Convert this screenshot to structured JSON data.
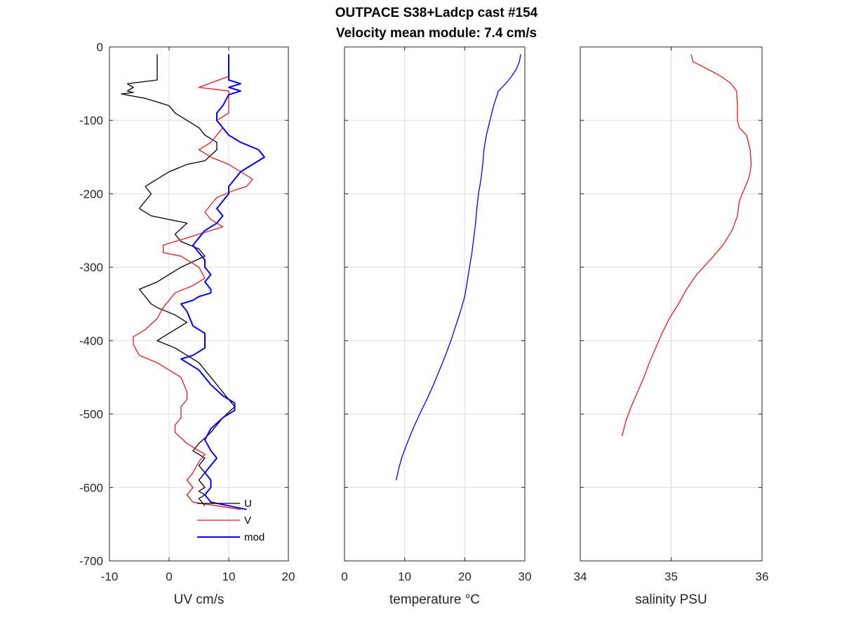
{
  "title_line1": "OUTPACE S38+Ladcp cast #154",
  "title_line2": "Velocity mean module:  7.4 cm/s",
  "chart_data": [
    {
      "type": "line",
      "xlabel": "UV cm/s",
      "ylabel": "",
      "xlim": [
        -10,
        20
      ],
      "ylim": [
        -700,
        0
      ],
      "xticks": [
        -10,
        0,
        10,
        20
      ],
      "yticks": [
        0,
        -100,
        -200,
        -300,
        -400,
        -500,
        -600,
        -700
      ],
      "grid": true,
      "legend_position": "bottom-right",
      "series": [
        {
          "name": "U",
          "color": "#000000",
          "x": [
            -2,
            -2,
            -2,
            -7,
            -6,
            -7,
            -6,
            -8,
            -4,
            0,
            1,
            3,
            5,
            6,
            8,
            8,
            6,
            3,
            0,
            -2,
            -3,
            -4,
            -3,
            -4,
            -5,
            -3,
            0,
            3,
            1,
            2,
            5,
            6,
            2,
            0,
            -2,
            -5,
            -4,
            -3,
            -2,
            1,
            3,
            1,
            -1,
            -2,
            1,
            5,
            7,
            9,
            11,
            9,
            7,
            5,
            4,
            6,
            5,
            6,
            5,
            6,
            5,
            6,
            5,
            6
          ],
          "y": [
            -10,
            -40,
            -45,
            -50,
            -55,
            -60,
            -62,
            -64,
            -70,
            -80,
            -90,
            -100,
            -110,
            -120,
            -130,
            -140,
            -155,
            -160,
            -170,
            -180,
            -185,
            -190,
            -200,
            -210,
            -220,
            -230,
            -235,
            -240,
            -255,
            -265,
            -275,
            -285,
            -300,
            -310,
            -320,
            -330,
            -340,
            -350,
            -355,
            -365,
            -375,
            -385,
            -395,
            -400,
            -410,
            -430,
            -450,
            -470,
            -490,
            -505,
            -525,
            -540,
            -550,
            -560,
            -570,
            -580,
            -590,
            -600,
            -605,
            -610,
            -615,
            -625
          ]
        },
        {
          "name": "V",
          "color": "#e41a1c",
          "x": [
            10,
            10,
            10,
            5,
            8,
            10,
            10,
            10,
            10,
            10,
            8,
            9,
            8,
            7,
            5,
            7,
            10,
            12,
            14,
            13,
            11,
            8,
            7,
            6,
            7,
            9,
            7,
            5,
            3,
            1,
            -1,
            -1,
            2,
            5,
            6,
            4,
            1,
            0,
            -1,
            -2,
            -4,
            -6,
            -6,
            -5,
            -2,
            2,
            3,
            3,
            2,
            2,
            1,
            1,
            3,
            6,
            5,
            4,
            3,
            4,
            3,
            4,
            12
          ],
          "y": [
            -10,
            -30,
            -40,
            -55,
            -58,
            -60,
            -62,
            -70,
            -80,
            -90,
            -100,
            -110,
            -120,
            -130,
            -140,
            -150,
            -160,
            -170,
            -180,
            -190,
            -195,
            -205,
            -215,
            -225,
            -235,
            -245,
            -250,
            -255,
            -260,
            -265,
            -270,
            -280,
            -285,
            -300,
            -315,
            -325,
            -335,
            -345,
            -355,
            -370,
            -385,
            -395,
            -405,
            -420,
            -430,
            -450,
            -470,
            -480,
            -490,
            -505,
            -515,
            -525,
            -540,
            -555,
            -565,
            -580,
            -590,
            -600,
            -610,
            -620,
            -630
          ]
        },
        {
          "name": "mod",
          "color": "#0000ff",
          "x": [
            10,
            10,
            10,
            12,
            10,
            12,
            10,
            9,
            8,
            8,
            9,
            10,
            12,
            15,
            16,
            14,
            12,
            11,
            10,
            10,
            9,
            8,
            9,
            8,
            6,
            5,
            4,
            5,
            6,
            6,
            7,
            6,
            7,
            7,
            5,
            4,
            2,
            3,
            4,
            6,
            6,
            6,
            4,
            2,
            5,
            7,
            9,
            11,
            11,
            9,
            7,
            6,
            7,
            8,
            7,
            6,
            7,
            7,
            6,
            7,
            13
          ],
          "y": [
            -10,
            -30,
            -45,
            -50,
            -55,
            -60,
            -65,
            -80,
            -90,
            -100,
            -110,
            -120,
            -130,
            -140,
            -150,
            -160,
            -170,
            -180,
            -190,
            -200,
            -210,
            -220,
            -230,
            -240,
            -250,
            -260,
            -270,
            -280,
            -290,
            -300,
            -310,
            -320,
            -330,
            -335,
            -340,
            -345,
            -350,
            -360,
            -380,
            -390,
            -400,
            -410,
            -420,
            -425,
            -440,
            -460,
            -475,
            -485,
            -495,
            -505,
            -520,
            -535,
            -550,
            -560,
            -570,
            -580,
            -590,
            -600,
            -610,
            -620,
            -630
          ]
        }
      ]
    },
    {
      "type": "line",
      "xlabel": "temperature °C",
      "ylabel": "",
      "xlim": [
        0,
        30
      ],
      "ylim": [
        -700,
        0
      ],
      "xticks": [
        0,
        10,
        20,
        30
      ],
      "yticks": [
        0,
        -100,
        -200,
        -300,
        -400,
        -500,
        -600,
        -700
      ],
      "grid": true,
      "series": [
        {
          "color": "#0000ff",
          "x": [
            29.3,
            29.1,
            28.6,
            27.8,
            26.8,
            25.6,
            24.8,
            24.2,
            23.6,
            23.2,
            23.0,
            22.7,
            22.3,
            22.0,
            21.8,
            21.5,
            21.2,
            20.8,
            20.4,
            20.0,
            19.3,
            18.5,
            17.7,
            16.8,
            15.8,
            14.8,
            13.7,
            12.5,
            11.4,
            10.4,
            9.5,
            9.0,
            8.6
          ],
          "y": [
            -10,
            -20,
            -30,
            -40,
            -50,
            -60,
            -80,
            -100,
            -120,
            -140,
            -160,
            -180,
            -200,
            -220,
            -240,
            -260,
            -280,
            -300,
            -320,
            -340,
            -360,
            -380,
            -400,
            -420,
            -440,
            -460,
            -480,
            -500,
            -520,
            -540,
            -560,
            -575,
            -590
          ]
        }
      ]
    },
    {
      "type": "line",
      "xlabel": "salinity PSU",
      "ylabel": "",
      "xlim": [
        34,
        36
      ],
      "ylim": [
        -700,
        0
      ],
      "xticks": [
        34,
        35,
        36
      ],
      "yticks": [
        0,
        -100,
        -200,
        -300,
        -400,
        -500,
        -600,
        -700
      ],
      "grid": true,
      "series": [
        {
          "color": "#e41a1c",
          "x": [
            35.22,
            35.24,
            35.4,
            35.55,
            35.66,
            35.72,
            35.73,
            35.73,
            35.75,
            35.83,
            35.87,
            35.88,
            35.87,
            35.85,
            35.8,
            35.75,
            35.73,
            35.67,
            35.57,
            35.43,
            35.28,
            35.17,
            35.08,
            34.98,
            34.9,
            34.83,
            34.76,
            34.7,
            34.63,
            34.56,
            34.5,
            34.46
          ],
          "y": [
            -10,
            -20,
            -30,
            -40,
            -50,
            -60,
            -80,
            -100,
            -110,
            -120,
            -140,
            -160,
            -170,
            -180,
            -195,
            -210,
            -230,
            -250,
            -270,
            -290,
            -310,
            -330,
            -350,
            -370,
            -390,
            -410,
            -430,
            -450,
            -470,
            -490,
            -510,
            -530
          ]
        }
      ]
    }
  ]
}
